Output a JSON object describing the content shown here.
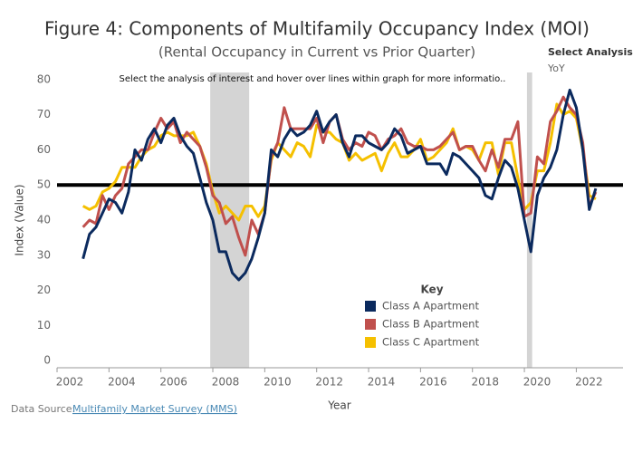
{
  "chart_data": {
    "type": "line",
    "title": "Figure 4: Components of Multifamily Occupancy Index (MOI)",
    "subtitle": "(Rental Occupancy in Current vs Prior Quarter)",
    "annotation": "Select the analysis of interest and hover over lines within graph for more informatio..",
    "x_label": "Year",
    "y_label": "Index (Value)",
    "legend_title": "Key",
    "xlim": [
      2002,
      2023.8
    ],
    "ylim": [
      -2,
      82
    ],
    "xticks": [
      2002,
      2004,
      2006,
      2008,
      2010,
      2012,
      2014,
      2016,
      2018,
      2020,
      2022
    ],
    "yticks": [
      0,
      10,
      20,
      30,
      40,
      50,
      60,
      70,
      80
    ],
    "reference_line": 50,
    "shaded_ranges": [
      [
        2007.9,
        2009.4
      ],
      [
        2020.1,
        2020.3
      ]
    ],
    "x": [
      2003,
      2003.25,
      2003.5,
      2003.75,
      2004,
      2004.25,
      2004.5,
      2004.75,
      2005,
      2005.25,
      2005.5,
      2005.75,
      2006,
      2006.25,
      2006.5,
      2006.75,
      2007,
      2007.25,
      2007.5,
      2007.75,
      2008,
      2008.25,
      2008.5,
      2008.75,
      2009,
      2009.25,
      2009.5,
      2009.75,
      2010,
      2010.25,
      2010.5,
      2010.75,
      2011,
      2011.25,
      2011.5,
      2011.75,
      2012,
      2012.25,
      2012.5,
      2012.75,
      2013,
      2013.25,
      2013.5,
      2013.75,
      2014,
      2014.25,
      2014.5,
      2014.75,
      2015,
      2015.25,
      2015.5,
      2015.75,
      2016,
      2016.25,
      2016.5,
      2016.75,
      2017,
      2017.25,
      2017.5,
      2017.75,
      2018,
      2018.25,
      2018.5,
      2018.75,
      2019,
      2019.25,
      2019.5,
      2019.75,
      2020,
      2020.25,
      2020.5,
      2020.75,
      2021,
      2021.25,
      2021.5,
      2021.75,
      2022,
      2022.25,
      2022.5,
      2022.75
    ],
    "series": [
      {
        "name": "Class A Apartment",
        "color": "#0b2a5e",
        "values": [
          29,
          36,
          38,
          42,
          46,
          45,
          42,
          48,
          60,
          57,
          63,
          66,
          62,
          67,
          69,
          64,
          61,
          59,
          52,
          45,
          40,
          31,
          31,
          25,
          23,
          25,
          29,
          35,
          42,
          60,
          58,
          63,
          66,
          64,
          65,
          67,
          71,
          65,
          68,
          70,
          62,
          58,
          64,
          64,
          62,
          61,
          60,
          62,
          66,
          64,
          59,
          60,
          61,
          56,
          56,
          56,
          53,
          59,
          58,
          56,
          54,
          52,
          47,
          46,
          52,
          57,
          55,
          49,
          40,
          31,
          47,
          52,
          55,
          60,
          70,
          77,
          72,
          60,
          43,
          49
        ]
      },
      {
        "name": "Class B Apartment",
        "color": "#c0504d",
        "values": [
          38,
          40,
          39,
          47,
          43,
          47,
          49,
          56,
          58,
          60,
          60,
          65,
          69,
          66,
          68,
          62,
          65,
          63,
          61,
          55,
          47,
          45,
          39,
          41,
          35,
          30,
          40,
          36,
          42,
          58,
          62,
          72,
          66,
          66,
          66,
          66,
          69,
          62,
          68,
          70,
          63,
          60,
          62,
          61,
          65,
          64,
          60,
          63,
          64,
          66,
          62,
          61,
          61,
          60,
          60,
          61,
          63,
          65,
          60,
          61,
          61,
          57,
          54,
          60,
          55,
          63,
          63,
          68,
          41,
          42,
          58,
          56,
          68,
          71,
          75,
          72,
          70,
          62,
          44,
          48
        ]
      },
      {
        "name": "Class C Apartment",
        "color": "#f5c000",
        "values": [
          44,
          43,
          44,
          48,
          49,
          51,
          55,
          55,
          55,
          58,
          60,
          61,
          64,
          65,
          64,
          64,
          64,
          65,
          61,
          56,
          48,
          42,
          44,
          42,
          40,
          44,
          44,
          41,
          44,
          57,
          62,
          60,
          58,
          62,
          61,
          58,
          67,
          65,
          65,
          63,
          62,
          57,
          59,
          57,
          58,
          59,
          54,
          59,
          62,
          58,
          58,
          60,
          63,
          57,
          58,
          60,
          62,
          66,
          60,
          61,
          60,
          57,
          62,
          62,
          53,
          62,
          62,
          52,
          43,
          45,
          54,
          54,
          62,
          73,
          70,
          71,
          69,
          60,
          47,
          46
        ]
      }
    ]
  },
  "controls": {
    "label": "Select Analysis",
    "value": "YoY"
  },
  "footer": {
    "label": "Data Source:",
    "link": "Multifamily Market Survey (MMS)"
  }
}
